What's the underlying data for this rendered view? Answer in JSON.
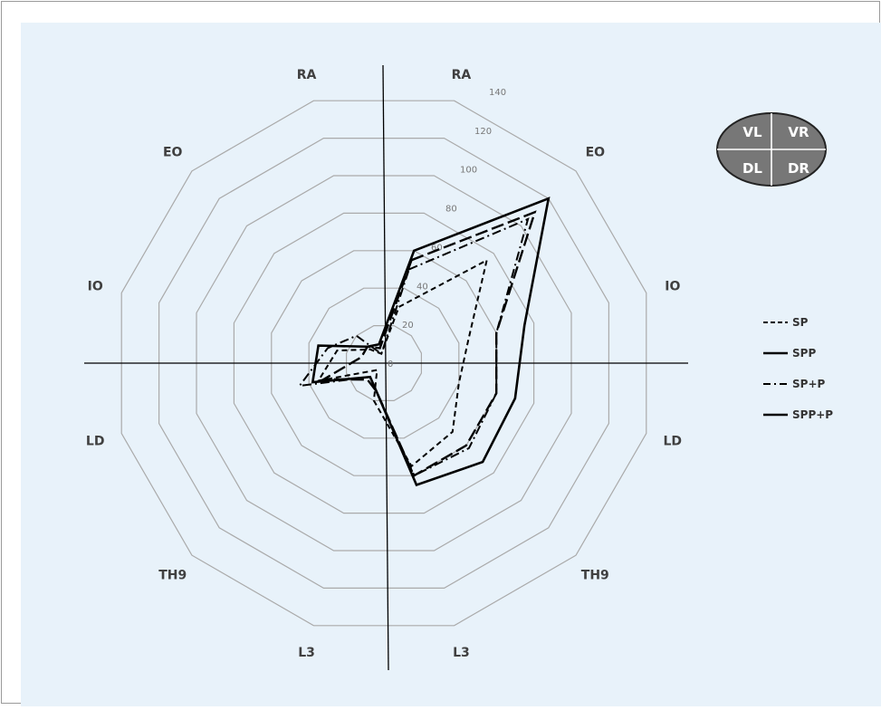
{
  "colors": {
    "background": "#e8f2fa",
    "ring": "#aaaaaa",
    "axis": "#000000",
    "series": "#000000",
    "quadrant_fill": "#777777",
    "quadrant_text": "#ffffff"
  },
  "quadrant_legend": {
    "cells": [
      "VL",
      "VR",
      "DL",
      "DR"
    ]
  },
  "chart_data": {
    "type": "radar",
    "title": "",
    "axes": [
      "RA",
      "EO",
      "IO",
      "LD",
      "TH9",
      "L3",
      "L3",
      "TH9",
      "LD",
      "IO",
      "EO",
      "RA"
    ],
    "range": [
      0,
      140
    ],
    "rings": [
      20,
      40,
      60,
      80,
      100,
      120,
      140
    ],
    "tick_labels": [
      "0",
      "20",
      "40",
      "60",
      "80",
      "100",
      "120",
      "140"
    ],
    "grid": true,
    "legend_position": "right",
    "series": [
      {
        "name": "SP",
        "dash": "dashed",
        "values": [
          30,
          75,
          45,
          40,
          50,
          55,
          20,
          5,
          35,
          25,
          10,
          5
        ]
      },
      {
        "name": "SPP",
        "dash": "longdash",
        "values": [
          55,
          110,
          60,
          60,
          60,
          60,
          15,
          12,
          32,
          12,
          12,
          8
        ]
      },
      {
        "name": "SP+P",
        "dash": "dashdot",
        "values": [
          50,
          105,
          60,
          60,
          62,
          60,
          15,
          10,
          45,
          30,
          20,
          5
        ]
      },
      {
        "name": "SPP+P",
        "dash": "solid",
        "values": [
          60,
          120,
          75,
          70,
          72,
          65,
          15,
          10,
          38,
          35,
          12,
          10
        ]
      }
    ]
  }
}
